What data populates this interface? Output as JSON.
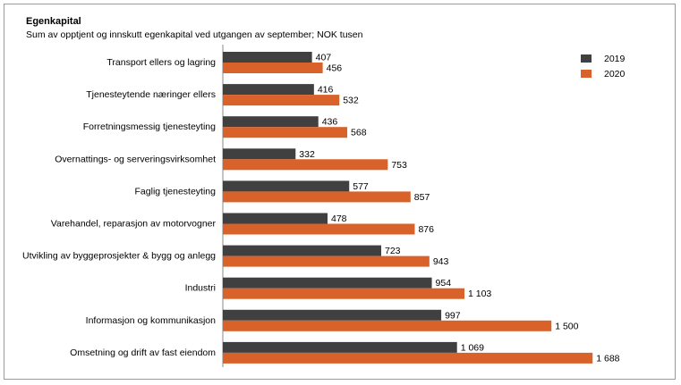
{
  "chart_data": {
    "type": "bar",
    "orientation": "horizontal",
    "title": "Egenkapital",
    "subtitle": "Sum av opptjent og innskutt egenkapital ved utgangen av september; NOK tusen",
    "categories": [
      "Transport ellers og lagring",
      "Tjenesteytende  næringer ellers",
      "Forretningsmessig tjenesteyting",
      "Overnattings- og serveringsvirksomhet",
      "Faglig tjenesteyting",
      "Varehandel, reparasjon av motorvogner",
      "Utvikling av byggeprosjekter & bygg og anlegg",
      "Industri",
      "Informasjon og kommunikasjon",
      "Omsetning og drift av fast eiendom"
    ],
    "series": [
      {
        "name": "2019",
        "color": "#404040",
        "values": [
          407,
          416,
          436,
          332,
          577,
          478,
          723,
          954,
          997,
          1069
        ],
        "labels": [
          "407",
          "416",
          "436",
          "332",
          "577",
          "478",
          "723",
          "954",
          "997",
          "1 069"
        ]
      },
      {
        "name": "2020",
        "color": "#d9622b",
        "values": [
          456,
          532,
          568,
          753,
          857,
          876,
          943,
          1103,
          1500,
          1688
        ],
        "labels": [
          "456",
          "532",
          "568",
          "753",
          "857",
          "876",
          "943",
          "1 103",
          "1 500",
          "1 688"
        ]
      }
    ],
    "xlim": [
      0,
      1688
    ],
    "grid": false,
    "legend_position": "top-right"
  }
}
